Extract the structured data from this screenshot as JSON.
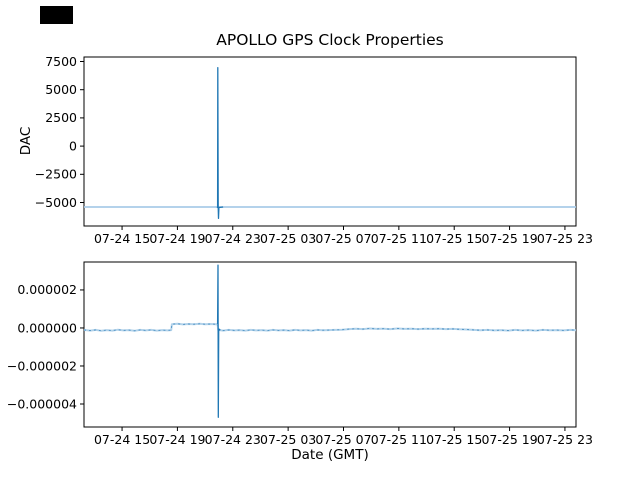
{
  "title": "APOLLO GPS Clock Properties",
  "chart_data": [
    {
      "type": "line",
      "subplot": "top",
      "title": "",
      "ylabel": "DAC",
      "xlabel": "",
      "grid": false,
      "legend": null,
      "ylim": [
        -7083,
        7899
      ],
      "xlim_hours": [
        12.25,
        47.8
      ],
      "yticks": [
        {
          "v": 7500,
          "label": "7500"
        },
        {
          "v": 5000,
          "label": "5000"
        },
        {
          "v": 2500,
          "label": "2500"
        },
        {
          "v": 0,
          "label": "0"
        },
        {
          "v": -2500,
          "label": "−2500"
        },
        {
          "v": -5000,
          "label": "−5000"
        }
      ],
      "xticks": [
        {
          "t": 15,
          "label": "07-24 15"
        },
        {
          "t": 19,
          "label": "07-24 19"
        },
        {
          "t": 23,
          "label": "07-24 23"
        },
        {
          "t": 27,
          "label": "07-25 03"
        },
        {
          "t": 31,
          "label": "07-25 07"
        },
        {
          "t": 35,
          "label": "07-25 11"
        },
        {
          "t": 39,
          "label": "07-25 15"
        },
        {
          "t": 43,
          "label": "07-25 19"
        },
        {
          "t": 47,
          "label": "07-25 23"
        }
      ],
      "series": [
        {
          "name": "dac-baseline",
          "color": "#a9cbe8",
          "width": 1.7,
          "points": [
            [
              12.25,
              -5400
            ],
            [
              47.8,
              -5400
            ]
          ]
        },
        {
          "name": "dac-spike",
          "color": "#1f77b4",
          "width": 1.3,
          "points": [
            [
              21.86,
              -5400
            ],
            [
              21.9,
              -5430
            ],
            [
              21.92,
              6950
            ],
            [
              21.945,
              -5400
            ],
            [
              21.965,
              -6400
            ],
            [
              22.0,
              -5440
            ],
            [
              22.3,
              -5400
            ]
          ]
        }
      ]
    },
    {
      "type": "line",
      "subplot": "bottom",
      "title": "",
      "ylabel": "",
      "xlabel": "Date (GMT)",
      "grid": false,
      "legend": null,
      "value_scale": 1e-06,
      "ylim": [
        -5.21,
        3.47
      ],
      "xlim_hours": [
        12.25,
        47.8
      ],
      "yticks": [
        {
          "v": 2,
          "label": "0.000002"
        },
        {
          "v": 0,
          "label": "0.000000"
        },
        {
          "v": -2,
          "label": "−0.000002"
        },
        {
          "v": -4,
          "label": "−0.000004"
        }
      ],
      "xticks": [
        {
          "t": 15,
          "label": "07-24 15"
        },
        {
          "t": 19,
          "label": "07-24 19"
        },
        {
          "t": 23,
          "label": "07-24 23"
        },
        {
          "t": 27,
          "label": "07-25 03"
        },
        {
          "t": 31,
          "label": "07-25 07"
        },
        {
          "t": 35,
          "label": "07-25 11"
        },
        {
          "t": 39,
          "label": "07-25 15"
        },
        {
          "t": 43,
          "label": "07-25 19"
        },
        {
          "t": 47,
          "label": "07-25 23"
        }
      ],
      "series": [
        {
          "name": "freq-noise-light",
          "color": "#b2d2ea",
          "width": 2.0,
          "points": [
            [
              12.25,
              -0.1
            ],
            [
              12.7,
              -0.14
            ],
            [
              13.1,
              -0.1
            ],
            [
              13.5,
              -0.15
            ],
            [
              13.9,
              -0.11
            ],
            [
              14.3,
              -0.14
            ],
            [
              14.7,
              -0.09
            ],
            [
              15.1,
              -0.13
            ],
            [
              15.5,
              -0.11
            ],
            [
              15.9,
              -0.15
            ],
            [
              16.3,
              -0.1
            ],
            [
              16.7,
              -0.13
            ],
            [
              17.1,
              -0.1
            ],
            [
              17.5,
              -0.14
            ],
            [
              17.9,
              -0.11
            ],
            [
              18.3,
              -0.13
            ],
            [
              18.55,
              -0.11
            ],
            [
              18.6,
              0.2
            ],
            [
              19.0,
              0.22
            ],
            [
              19.4,
              0.19
            ],
            [
              19.8,
              0.21
            ],
            [
              20.2,
              0.2
            ],
            [
              20.6,
              0.22
            ],
            [
              21.0,
              0.2
            ],
            [
              21.4,
              0.21
            ],
            [
              21.8,
              0.2
            ],
            [
              21.9,
              0.21
            ],
            [
              21.95,
              -0.1
            ],
            [
              22.3,
              -0.14
            ],
            [
              22.7,
              -0.1
            ],
            [
              23.1,
              -0.13
            ],
            [
              23.5,
              -0.11
            ],
            [
              23.9,
              -0.14
            ],
            [
              24.3,
              -0.1
            ],
            [
              24.7,
              -0.13
            ],
            [
              25.1,
              -0.11
            ],
            [
              25.5,
              -0.14
            ],
            [
              25.9,
              -0.1
            ],
            [
              26.3,
              -0.13
            ],
            [
              26.7,
              -0.11
            ],
            [
              27.1,
              -0.14
            ],
            [
              27.5,
              -0.1
            ],
            [
              27.9,
              -0.13
            ],
            [
              28.3,
              -0.11
            ],
            [
              28.7,
              -0.14
            ],
            [
              29.1,
              -0.1
            ],
            [
              29.5,
              -0.12
            ],
            [
              29.9,
              -0.11
            ],
            [
              30.4,
              -0.1
            ],
            [
              30.9,
              -0.09
            ],
            [
              31.4,
              -0.06
            ],
            [
              31.9,
              -0.04
            ],
            [
              32.4,
              -0.06
            ],
            [
              32.9,
              -0.03
            ],
            [
              33.4,
              -0.05
            ],
            [
              33.9,
              -0.04
            ],
            [
              34.4,
              -0.06
            ],
            [
              34.9,
              -0.03
            ],
            [
              35.4,
              -0.05
            ],
            [
              35.9,
              -0.04
            ],
            [
              36.4,
              -0.06
            ],
            [
              36.9,
              -0.04
            ],
            [
              37.4,
              -0.05
            ],
            [
              37.9,
              -0.04
            ],
            [
              38.4,
              -0.06
            ],
            [
              38.9,
              -0.05
            ],
            [
              39.4,
              -0.07
            ],
            [
              39.9,
              -0.08
            ],
            [
              40.4,
              -0.1
            ],
            [
              40.9,
              -0.12
            ],
            [
              41.4,
              -0.1
            ],
            [
              41.9,
              -0.13
            ],
            [
              42.4,
              -0.11
            ],
            [
              42.9,
              -0.14
            ],
            [
              43.4,
              -0.1
            ],
            [
              43.9,
              -0.13
            ],
            [
              44.4,
              -0.11
            ],
            [
              44.9,
              -0.14
            ],
            [
              45.4,
              -0.1
            ],
            [
              45.9,
              -0.12
            ],
            [
              46.4,
              -0.11
            ],
            [
              46.9,
              -0.13
            ],
            [
              47.4,
              -0.1
            ],
            [
              47.8,
              -0.12
            ]
          ]
        },
        {
          "name": "freq-noise-dark-overlay",
          "color": "#4f93c4",
          "width": 0.9,
          "dash": "2 3",
          "same_points_as": "freq-noise-light",
          "points": []
        },
        {
          "name": "freq-spike",
          "color": "#1f77b4",
          "width": 1.3,
          "points": [
            [
              21.9,
              0.21
            ],
            [
              21.93,
              3.3
            ],
            [
              21.955,
              -4.7
            ],
            [
              21.98,
              -0.05
            ],
            [
              22.1,
              -0.12
            ]
          ]
        }
      ]
    }
  ]
}
